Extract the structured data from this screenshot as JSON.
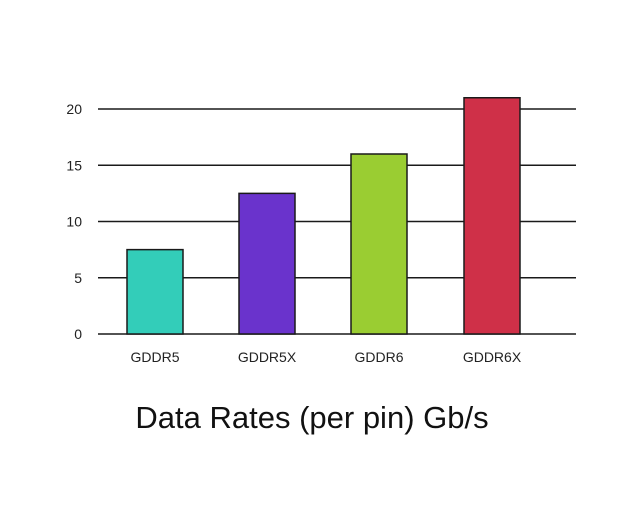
{
  "chart_data": {
    "type": "bar",
    "title": "Data Rates (per pin) Gb/s",
    "xlabel": "",
    "ylabel": "",
    "categories": [
      "GDDR5",
      "GDDR5X",
      "GDDR6",
      "GDDR6X"
    ],
    "values": [
      7.5,
      12.5,
      16,
      21
    ],
    "colors": [
      "#33cdb9",
      "#6a33cc",
      "#9acd32",
      "#cf3048"
    ],
    "ylim": [
      0,
      20
    ],
    "yticks": [
      0,
      5,
      10,
      15,
      20
    ],
    "grid": true,
    "legend": null
  }
}
